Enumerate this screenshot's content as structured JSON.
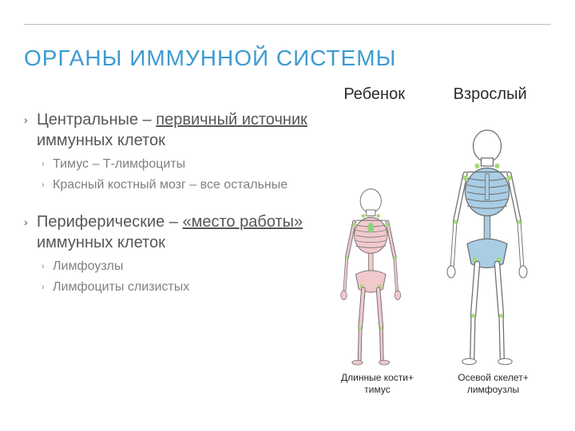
{
  "title": {
    "text": "ОРГАНЫ ИММУННОЙ СИСТЕМЫ",
    "color": "#3d9bd1"
  },
  "text_color_l1": "#575757",
  "text_color_l2": "#808080",
  "bullet_marker": "›",
  "bullets": {
    "central": {
      "prefix": "Центральные – ",
      "underlined": "первичный источник",
      "suffix": "  иммунных клеток",
      "items": [
        "Тимус – Т-лимфоциты",
        "Красный костный мозг – все остальные"
      ]
    },
    "peripheral": {
      "prefix": "Периферические – ",
      "underlined": "«место работы» ",
      "suffix": "иммунных клеток",
      "items": [
        "Лимфоузлы",
        "Лимфоциты слизистых"
      ]
    }
  },
  "figure": {
    "header": {
      "child": "Ребенок",
      "adult": "Взрослый"
    },
    "caption": {
      "child": "Длинные кости+ тимус",
      "adult": "Осевой скелет+ лимфоузлы"
    },
    "child": {
      "scale": 0.75,
      "bone_fill": "#f2c9cd",
      "bone_stroke": "#6d6d6d",
      "skull_fill": "#ffffff",
      "thymus_fill": "#8fd17a",
      "node_fill": "#a8d97a"
    },
    "adult": {
      "scale": 1.0,
      "bone_fill": "#ffffff",
      "axial_fill": "#a9cde4",
      "bone_stroke": "#6d6d6d",
      "node_fill": "#a8d97a"
    }
  }
}
